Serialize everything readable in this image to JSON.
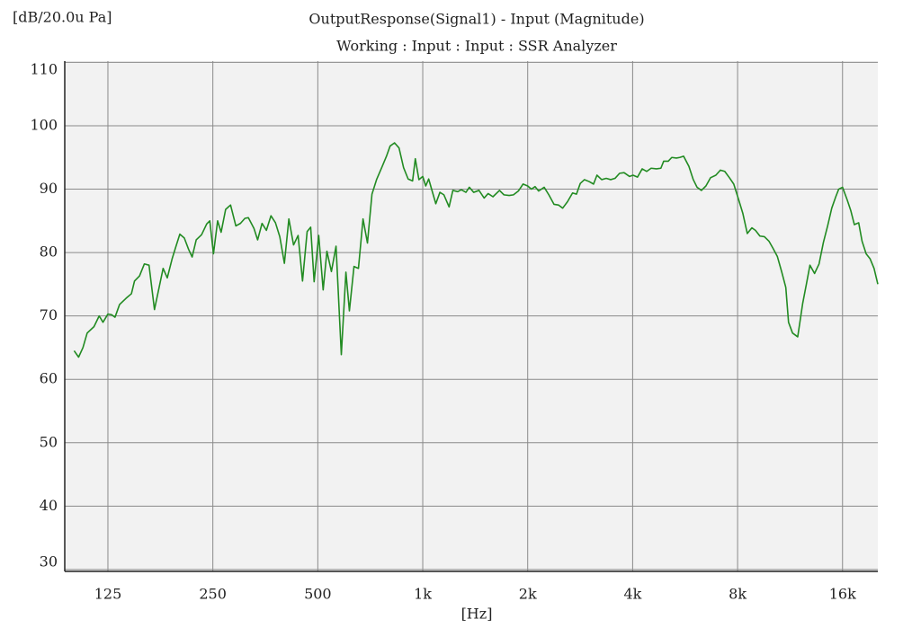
{
  "chart_data": {
    "type": "line",
    "y_unit_label": "[dB/20.0u Pa]",
    "title": "OutputResponse(Signal1) - Input (Magnitude)",
    "subtitle": "Working : Input : Input : SSR Analyzer",
    "x_label": "[Hz]",
    "x_scale": "log",
    "grid": true,
    "color": "#228b22",
    "xlim": [
      94,
      20200
    ],
    "xticks": [
      125,
      250,
      500,
      {
        "value": 1000,
        "label": "1k"
      },
      {
        "value": 2000,
        "label": "2k"
      },
      {
        "value": 4000,
        "label": "4k"
      },
      {
        "value": 8000,
        "label": "8k"
      },
      {
        "value": 16000,
        "label": "16k"
      }
    ],
    "ylim": [
      29.7,
      110.2
    ],
    "yticks": [
      30,
      40,
      50,
      60,
      70,
      80,
      90,
      100,
      110
    ],
    "x": [
      100,
      103,
      106,
      109,
      114,
      118,
      121,
      125,
      128,
      131,
      135,
      141,
      146,
      149,
      154,
      159,
      164,
      170,
      180,
      185,
      191,
      196,
      201,
      207,
      213,
      218,
      224,
      232,
      240,
      245,
      251,
      258,
      264,
      272,
      281,
      291,
      300,
      309,
      316,
      328,
      336,
      346,
      356,
      367,
      378,
      389,
      401,
      413,
      426,
      439,
      452,
      466,
      477,
      488,
      503,
      518,
      531,
      547,
      564,
      584,
      602,
      616,
      635,
      654,
      674,
      694,
      715,
      737,
      764,
      787,
      806,
      830,
      855,
      881,
      908,
      935,
      952,
      975,
      1000,
      1020,
      1040,
      1090,
      1120,
      1150,
      1190,
      1220,
      1260,
      1290,
      1330,
      1360,
      1400,
      1450,
      1500,
      1540,
      1590,
      1660,
      1710,
      1770,
      1820,
      1880,
      1940,
      2000,
      2050,
      2100,
      2150,
      2230,
      2300,
      2380,
      2450,
      2520,
      2600,
      2690,
      2760,
      2830,
      2910,
      3000,
      3090,
      3160,
      3260,
      3360,
      3460,
      3560,
      3670,
      3780,
      3920,
      4010,
      4130,
      4260,
      4390,
      4520,
      4680,
      4820,
      4910,
      5060,
      5180,
      5340,
      5460,
      5600,
      5800,
      5970,
      6120,
      6300,
      6490,
      6690,
      6930,
      7140,
      7350,
      7580,
      7800,
      8040,
      8280,
      8530,
      8790,
      9000,
      9270,
      9550,
      9840,
      10100,
      10400,
      10700,
      11000,
      11200,
      11500,
      11900,
      12300,
      12600,
      12900,
      13300,
      13700,
      14100,
      14500,
      14900,
      15300,
      15600,
      16000,
      16500,
      16900,
      17300,
      17800,
      18200,
      18700,
      19200,
      19700,
      20200
    ],
    "values": [
      64.5,
      63.5,
      65,
      67.3,
      68.3,
      70,
      69,
      70.3,
      70.2,
      69.8,
      71.8,
      72.8,
      73.5,
      75.5,
      76.3,
      78.2,
      78,
      71,
      77.5,
      76,
      79,
      81,
      82.9,
      82.3,
      80.5,
      79.3,
      82,
      82.8,
      84.5,
      85,
      79.8,
      85,
      83.2,
      86.8,
      87.5,
      84.2,
      84.6,
      85.4,
      85.5,
      83.8,
      82,
      84.6,
      83.5,
      85.8,
      84.7,
      82.5,
      78.3,
      85.3,
      81.2,
      82.7,
      75.5,
      83.3,
      84,
      75.4,
      82.7,
      74.1,
      80.2,
      77,
      81,
      63.9,
      76.9,
      70.8,
      77.8,
      77.5,
      85.3,
      81.5,
      89.2,
      91.5,
      93.5,
      95.2,
      96.8,
      97.3,
      96.5,
      93.4,
      91.6,
      91.3,
      94.8,
      91.5,
      92,
      90.5,
      91.6,
      87.7,
      89.5,
      89.1,
      87.2,
      89.8,
      89.6,
      89.9,
      89.5,
      90.3,
      89.5,
      89.8,
      88.6,
      89.3,
      88.8,
      89.8,
      89.1,
      89,
      89.1,
      89.7,
      90.8,
      90.5,
      90,
      90.4,
      89.7,
      90.3,
      89.1,
      87.6,
      87.5,
      87,
      88,
      89.4,
      89.2,
      90.9,
      91.5,
      91.2,
      90.8,
      92.2,
      91.5,
      91.7,
      91.5,
      91.7,
      92.5,
      92.6,
      92,
      92.2,
      91.9,
      93.2,
      92.8,
      93.3,
      93.2,
      93.3,
      94.4,
      94.4,
      95,
      94.9,
      95,
      95.2,
      93.6,
      91.5,
      90.3,
      89.8,
      90.5,
      91.8,
      92.2,
      93,
      92.8,
      91.8,
      90.8,
      88.5,
      86.2,
      83,
      83.9,
      83.5,
      82.6,
      82.5,
      81.8,
      80.7,
      79.4,
      77,
      74.5,
      69,
      67.3,
      66.7,
      72,
      75,
      78,
      76.7,
      78.2,
      81.6,
      84.2,
      87,
      88.8,
      90,
      90.3,
      88.3,
      86.6,
      84.4,
      84.7,
      81.8,
      79.8,
      79,
      77.5,
      75
    ]
  }
}
